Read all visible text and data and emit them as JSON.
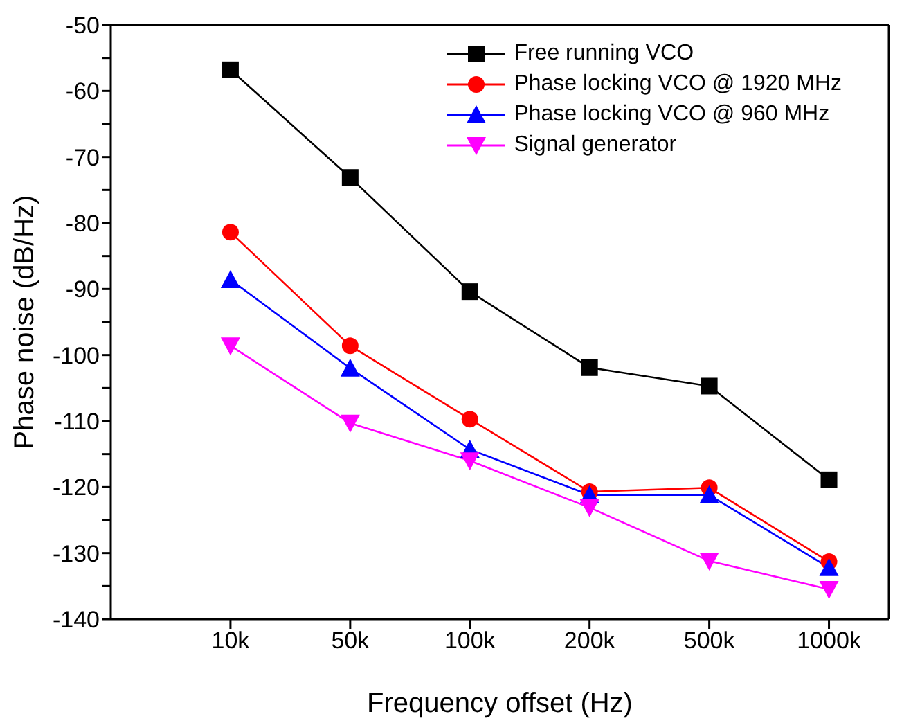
{
  "chart_data": {
    "type": "line",
    "xlabel": "Frequency offset (Hz)",
    "ylabel": "Phase noise (dB/Hz)",
    "categories": [
      "10k",
      "50k",
      "100k",
      "200k",
      "500k",
      "1000k"
    ],
    "series": [
      {
        "name": "Free running VCO",
        "color": "#000000",
        "marker": "square",
        "values": [
          -56.8,
          -73.1,
          -90.4,
          -101.9,
          -104.7,
          -118.9
        ]
      },
      {
        "name": "Phase locking VCO @ 1920 MHz",
        "color": "#ff0000",
        "marker": "circle",
        "values": [
          -81.4,
          -98.6,
          -109.7,
          -120.7,
          -120.1,
          -131.3
        ]
      },
      {
        "name": "Phase locking VCO @ 960 MHz",
        "color": "#0000ff",
        "marker": "triangle",
        "values": [
          -88.6,
          -102.0,
          -114.3,
          -121.2,
          -121.2,
          -132.2
        ]
      },
      {
        "name": "Signal generator",
        "color": "#ff00ff",
        "marker": "triangle-down",
        "values": [
          -98.6,
          -110.3,
          -116.0,
          -123.1,
          -131.2,
          -135.5
        ]
      }
    ],
    "ylim": [
      -140,
      -50
    ],
    "yticks": [
      -140,
      {
        "value": -135,
        "label": null
      },
      -130,
      {
        "value": -125,
        "label": null
      },
      -120,
      {
        "value": -115,
        "label": null
      },
      -110,
      {
        "value": -105,
        "label": null
      },
      -100,
      {
        "value": -95,
        "label": null
      },
      -90,
      {
        "value": -85,
        "label": null
      },
      -80,
      {
        "value": -75,
        "label": null
      },
      -70,
      {
        "value": -65,
        "label": null
      },
      -60,
      {
        "value": -55,
        "label": null
      },
      -50
    ],
    "grid": false,
    "legend": "top right",
    "line_style": "solid"
  }
}
